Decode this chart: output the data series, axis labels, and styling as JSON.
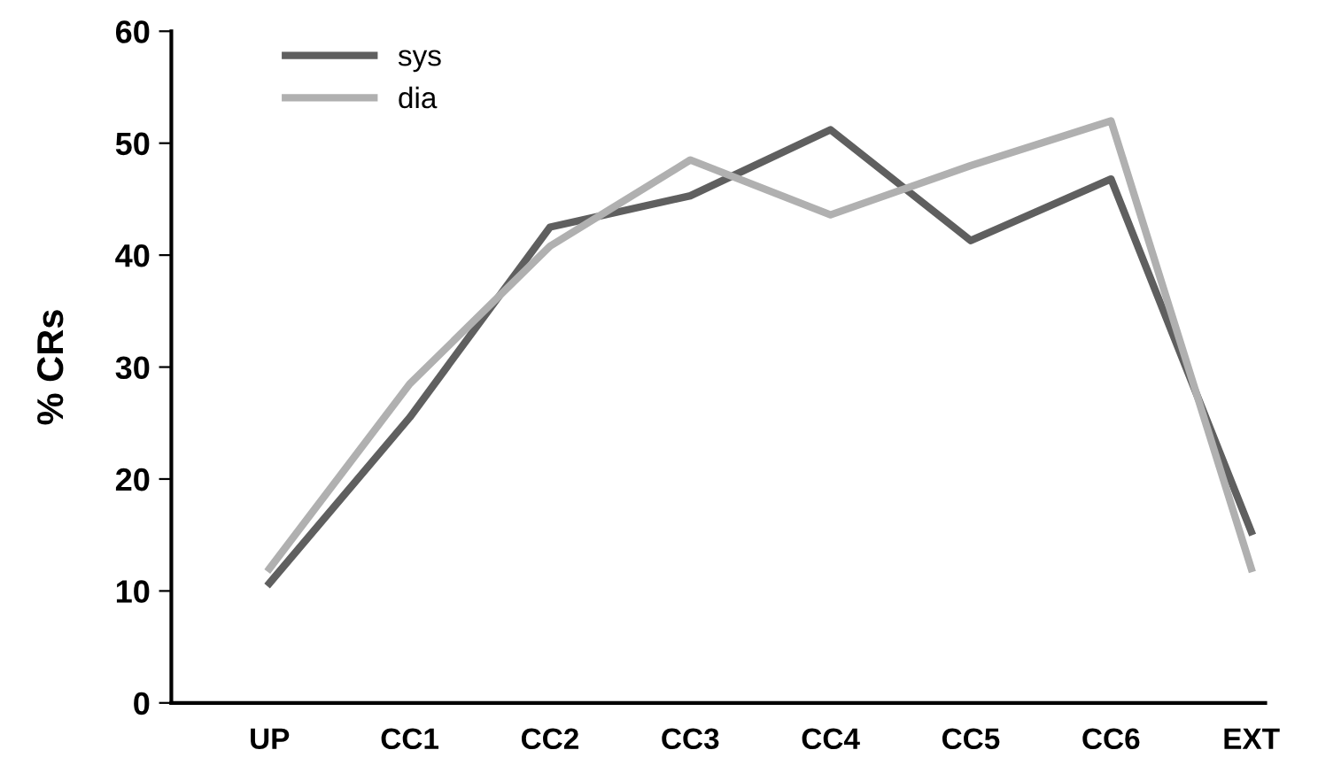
{
  "chart_data": {
    "type": "line",
    "ylabel": "% CRs",
    "categories": [
      "UP",
      "CC1",
      "CC2",
      "CC3",
      "CC4",
      "CC5",
      "CC6",
      "EXT"
    ],
    "series": [
      {
        "name": "sys",
        "color": "#5f5f5f",
        "values": [
          10.7,
          25.5,
          42.5,
          45.3,
          51.2,
          41.3,
          46.8,
          15.3
        ]
      },
      {
        "name": "dia",
        "color": "#b0b0b0",
        "values": [
          12,
          28.5,
          40.8,
          48.5,
          43.6,
          48,
          52,
          12
        ]
      }
    ],
    "ylim": [
      0,
      60
    ],
    "yticks": [
      0,
      10,
      20,
      30,
      40,
      50,
      60
    ],
    "grid": false,
    "legend": "top left",
    "marker": "none",
    "line_style": "solid"
  }
}
